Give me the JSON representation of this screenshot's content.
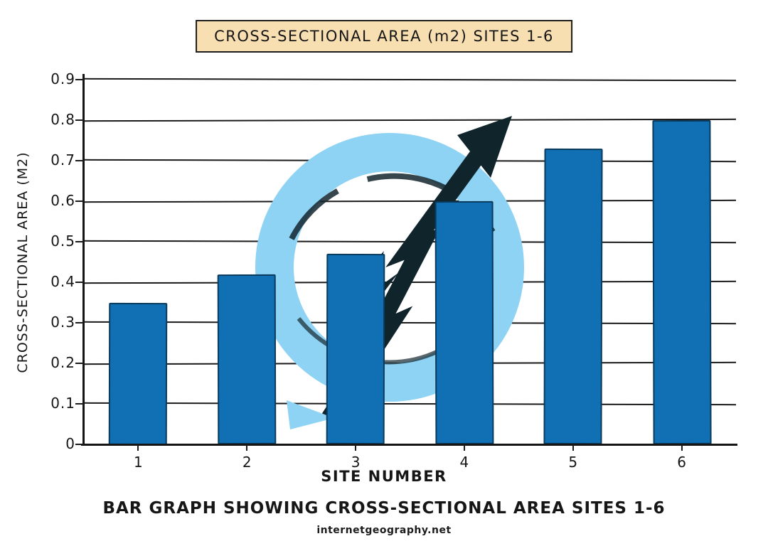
{
  "chart": {
    "title": "CROSS-SECTIONAL AREA (m2) SITES 1-6",
    "x_axis_label": "SITE NUMBER",
    "y_axis_label": "CROSS-SECTIONAL AREA (M2)",
    "caption": "BAR GRAPH SHOWING CROSS-SECTIONAL AREA SITES 1-6",
    "sub_caption": "internetgeography.net",
    "watermark_icon": "growth-arrow-through-circle-logo"
  },
  "chart_data": {
    "type": "bar",
    "title": "CROSS-SECTIONAL AREA (m2) SITES 1-6",
    "categories": [
      "1",
      "2",
      "3",
      "4",
      "5",
      "6"
    ],
    "values": [
      0.35,
      0.42,
      0.47,
      0.6,
      0.73,
      0.8
    ],
    "xlabel": "SITE NUMBER",
    "ylabel": "CROSS-SECTIONAL AREA (M2)",
    "ylim": [
      0,
      0.9
    ],
    "ytick_step": 0.1,
    "yticks": [
      "0",
      "0.1",
      "0.2",
      "0.3",
      "0.4",
      "0.5",
      "0.6",
      "0.7",
      "0.8",
      "0.9"
    ],
    "grid": "horizontal",
    "legend": "none",
    "bar_color": "#1170b4",
    "bar_edge_color": "#0a3a5c",
    "title_box_color": "#f8dfb2",
    "style": "hand-drawn sketch (xkcd-like)"
  }
}
